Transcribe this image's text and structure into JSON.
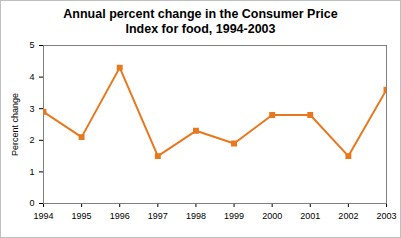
{
  "chart_data": {
    "type": "line",
    "title": "Annual percent change in the Consumer Price Index for food, 1994-2003",
    "y_label": "Percent change",
    "x": [
      1994,
      1995,
      1996,
      1997,
      1998,
      1999,
      2000,
      2001,
      2002,
      2003
    ],
    "values": [
      2.9,
      2.1,
      4.3,
      1.5,
      2.3,
      1.9,
      2.8,
      2.8,
      1.5,
      3.6
    ],
    "color": "#e8781e",
    "marker": "square",
    "line_style": "solid",
    "xlim": [
      1994,
      2003
    ],
    "xticks": [
      1994,
      1995,
      1996,
      1997,
      1998,
      1999,
      2000,
      2001,
      2002,
      2003
    ],
    "ylim": [
      0,
      5
    ],
    "yticks": [
      0,
      1,
      2,
      3,
      4,
      5
    ],
    "grid": false
  }
}
